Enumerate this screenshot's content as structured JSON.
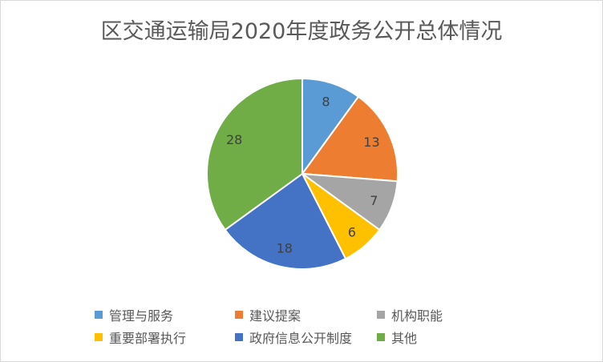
{
  "chart_data": {
    "type": "pie",
    "title": "区交通运输局2020年度政务公开总体情况",
    "categories": [
      "管理与服务",
      "建议提案",
      "机构职能",
      "重要部署执行",
      "政府信息公开制度",
      "其他"
    ],
    "values": [
      8,
      13,
      7,
      6,
      18,
      28
    ],
    "colors": [
      "#5B9BD5",
      "#ED7D31",
      "#A5A5A5",
      "#FFC000",
      "#4472C4",
      "#70AD47"
    ],
    "data_labels": [
      "8",
      "13",
      "7",
      "6",
      "18",
      "28"
    ],
    "start_angle_deg": 0,
    "direction": "clockwise",
    "legend_position": "bottom"
  }
}
